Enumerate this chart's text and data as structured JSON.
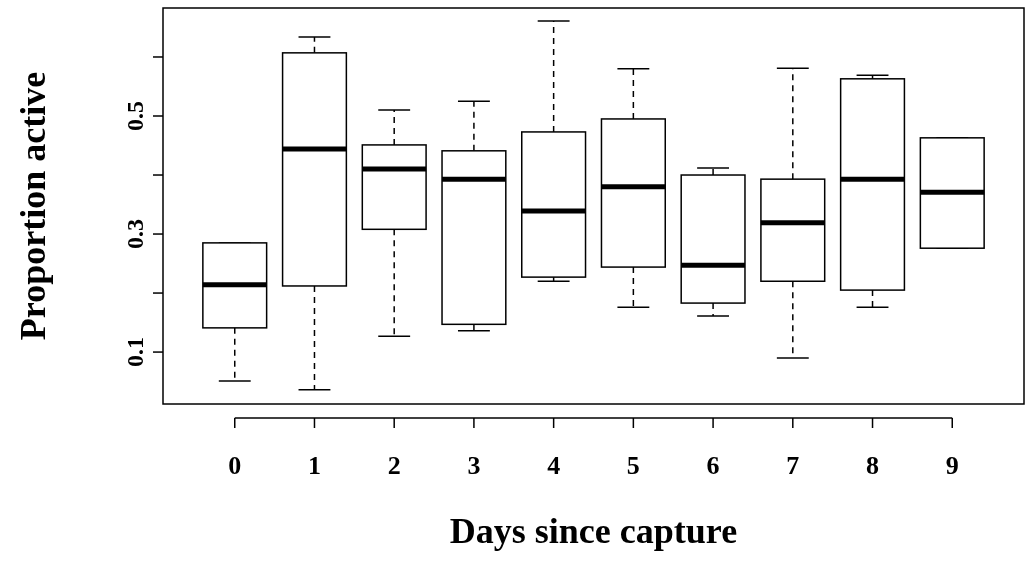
{
  "chart_data": {
    "type": "box",
    "xlabel": "Days since capture",
    "ylabel": "Proportion active",
    "categories": [
      "0",
      "1",
      "2",
      "3",
      "4",
      "5",
      "6",
      "7",
      "8",
      "9"
    ],
    "ylim": [
      0.012,
      0.683
    ],
    "yticks": [
      0.1,
      {
        "value": 0.2,
        "label": null
      },
      0.3,
      {
        "value": 0.4,
        "label": null
      },
      0.5,
      {
        "value": 0.6,
        "label": null
      }
    ],
    "boxes": [
      {
        "low": 0.051,
        "q1": 0.141,
        "median": 0.214,
        "q3": 0.285,
        "high": 0.285
      },
      {
        "low": 0.036,
        "q1": 0.212,
        "median": 0.444,
        "q3": 0.607,
        "high": 0.634
      },
      {
        "low": 0.127,
        "q1": 0.308,
        "median": 0.41,
        "q3": 0.451,
        "high": 0.51
      },
      {
        "low": 0.136,
        "q1": 0.147,
        "median": 0.393,
        "q3": 0.441,
        "high": 0.525
      },
      {
        "low": 0.22,
        "q1": 0.227,
        "median": 0.339,
        "q3": 0.473,
        "high": 0.661
      },
      {
        "low": 0.176,
        "q1": 0.244,
        "median": 0.38,
        "q3": 0.495,
        "high": 0.58
      },
      {
        "low": 0.161,
        "q1": 0.183,
        "median": 0.247,
        "q3": 0.4,
        "high": 0.412
      },
      {
        "low": 0.09,
        "q1": 0.22,
        "median": 0.319,
        "q3": 0.393,
        "high": 0.581
      },
      {
        "low": 0.176,
        "q1": 0.205,
        "median": 0.393,
        "q3": 0.563,
        "high": 0.569
      },
      {
        "low": 0.276,
        "q1": 0.276,
        "median": 0.371,
        "q3": 0.463,
        "high": 0.463
      }
    ],
    "line_style": "dashed"
  }
}
